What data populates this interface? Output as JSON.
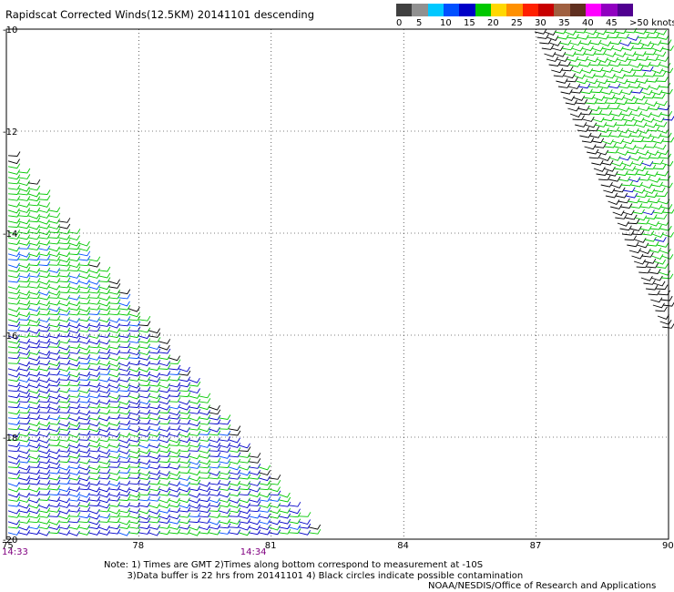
{
  "title": "Rapidscat Corrected Winds(12.5KM) 20141101 descending",
  "legend": {
    "labels": [
      "0",
      "5",
      "10",
      "15",
      "20",
      "25",
      "30",
      "35",
      "40",
      "45",
      ">50 knots"
    ],
    "colors": [
      "#404040",
      "#909090",
      "#00c8ff",
      "#0050ff",
      "#0000c8",
      "#00c800",
      "#ffd800",
      "#ff9000",
      "#ff2000",
      "#c80000",
      "#a06040",
      "#603020",
      "#ff00ff",
      "#9000c0",
      "#500090"
    ]
  },
  "chart_data": {
    "type": "scatter",
    "title": "Rapidscat Corrected Winds(12.5KM) 20141101 descending",
    "xlabel": "",
    "ylabel": "",
    "xlim": [
      75,
      90
    ],
    "ylim": [
      -20,
      -10
    ],
    "grid": true,
    "x_ticks": [
      "75",
      "78",
      "81",
      "84",
      "87",
      "90"
    ],
    "y_ticks": [
      "-10",
      "-12",
      "-14",
      "-16",
      "-18",
      "-20"
    ],
    "time_labels": [
      {
        "text": "14:33",
        "x": 75
      },
      {
        "text": "14:34",
        "x": 80.4
      }
    ],
    "swaths": [
      {
        "name": "",
        "polygon": [
          [
            75,
            -12.3
          ],
          [
            75,
            -20
          ],
          [
            82.2,
            -20
          ]
        ],
        "dominant_speed_knots": "10-20"
      },
      {
        "name": "",
        "polygon": [
          [
            86.9,
            -10
          ],
          [
            90,
            -10
          ],
          [
            90,
            -16.2
          ]
        ],
        "dominant_speed_knots": "15-20"
      }
    ]
  },
  "notes": {
    "line1": "Note: 1) Times are GMT 2)Times along bottom correspond to measurement at -10S",
    "line2": "3)Data buffer is 22 hrs from 20141101 4) Black circles indicate possible contamination"
  },
  "credit": "NOAA/NESDIS/Office of Research and Applications"
}
